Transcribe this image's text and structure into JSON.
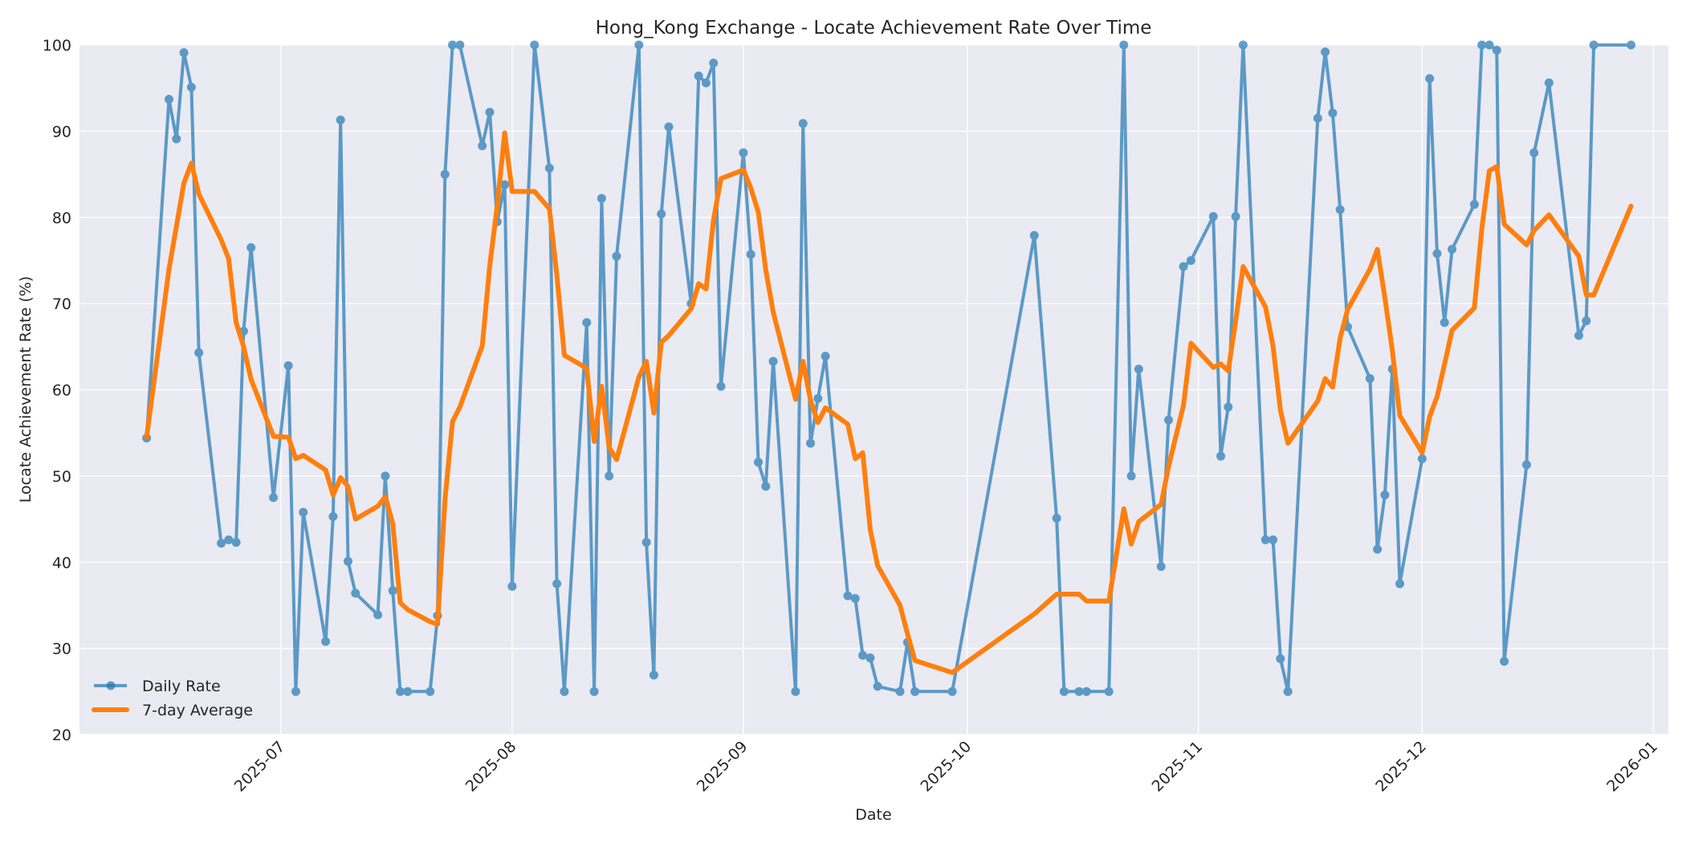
{
  "chart_data": {
    "type": "line",
    "title": "Hong_Kong Exchange - Locate Achievement Rate Over Time",
    "xlabel": "Date",
    "ylabel": "Locate Achievement Rate (%)",
    "ylim": [
      20,
      100
    ],
    "xlim": [
      "2025-06-04",
      "2026-01-03"
    ],
    "yticks": [
      20,
      30,
      40,
      50,
      60,
      70,
      80,
      90,
      100
    ],
    "xticks": [
      "2025-07",
      "2025-08",
      "2025-09",
      "2025-10",
      "2025-11",
      "2025-12",
      "2026-01"
    ],
    "grid": true,
    "legend_position": "lower left",
    "colors": {
      "daily": "#1f77b4",
      "average": "#ff7f0e",
      "plot_bg": "#eaeaf2",
      "grid": "#ffffff"
    },
    "x": [
      "2025-06-13",
      "2025-06-16",
      "2025-06-17",
      "2025-06-18",
      "2025-06-19",
      "2025-06-20",
      "2025-06-23",
      "2025-06-24",
      "2025-06-25",
      "2025-06-26",
      "2025-06-27",
      "2025-06-30",
      "2025-07-02",
      "2025-07-03",
      "2025-07-04",
      "2025-07-07",
      "2025-07-08",
      "2025-07-09",
      "2025-07-10",
      "2025-07-11",
      "2025-07-14",
      "2025-07-15",
      "2025-07-16",
      "2025-07-17",
      "2025-07-18",
      "2025-07-21",
      "2025-07-22",
      "2025-07-23",
      "2025-07-24",
      "2025-07-25",
      "2025-07-28",
      "2025-07-29",
      "2025-07-30",
      "2025-07-31",
      "2025-08-01",
      "2025-08-04",
      "2025-08-06",
      "2025-08-07",
      "2025-08-08",
      "2025-08-11",
      "2025-08-12",
      "2025-08-13",
      "2025-08-14",
      "2025-08-15",
      "2025-08-18",
      "2025-08-19",
      "2025-08-20",
      "2025-08-21",
      "2025-08-22",
      "2025-08-25",
      "2025-08-26",
      "2025-08-27",
      "2025-08-28",
      "2025-08-29",
      "2025-09-01",
      "2025-09-02",
      "2025-09-03",
      "2025-09-04",
      "2025-09-05",
      "2025-09-08",
      "2025-09-09",
      "2025-09-10",
      "2025-09-11",
      "2025-09-12",
      "2025-09-15",
      "2025-09-16",
      "2025-09-17",
      "2025-09-18",
      "2025-09-19",
      "2025-09-22",
      "2025-09-23",
      "2025-09-24",
      "2025-09-29",
      "2025-10-10",
      "2025-10-13",
      "2025-10-14",
      "2025-10-16",
      "2025-10-17",
      "2025-10-20",
      "2025-10-22",
      "2025-10-23",
      "2025-10-24",
      "2025-10-27",
      "2025-10-28",
      "2025-10-30",
      "2025-10-31",
      "2025-11-03",
      "2025-11-04",
      "2025-11-05",
      "2025-11-06",
      "2025-11-07",
      "2025-11-10",
      "2025-11-11",
      "2025-11-12",
      "2025-11-13",
      "2025-11-17",
      "2025-11-18",
      "2025-11-19",
      "2025-11-20",
      "2025-11-21",
      "2025-11-24",
      "2025-11-25",
      "2025-11-26",
      "2025-11-27",
      "2025-11-28",
      "2025-12-01",
      "2025-12-02",
      "2025-12-03",
      "2025-12-04",
      "2025-12-05",
      "2025-12-08",
      "2025-12-09",
      "2025-12-10",
      "2025-12-11",
      "2025-12-12",
      "2025-12-15",
      "2025-12-16",
      "2025-12-18",
      "2025-12-22",
      "2025-12-23",
      "2025-12-24",
      "2025-12-29"
    ],
    "series": [
      {
        "name": "Daily Rate",
        "style": "line-marker",
        "values": [
          54.4,
          93.7,
          89.1,
          99.1,
          95.1,
          64.3,
          42.2,
          42.6,
          42.3,
          66.8,
          76.5,
          47.5,
          62.8,
          25.0,
          45.8,
          30.8,
          45.3,
          91.3,
          40.1,
          36.4,
          33.9,
          50.0,
          36.7,
          25.0,
          25.0,
          25.0,
          33.8,
          85.0,
          100,
          100,
          88.3,
          92.2,
          79.5,
          83.8,
          37.2,
          100,
          85.7,
          37.5,
          25.0,
          67.8,
          25.0,
          82.2,
          50.0,
          75.5,
          100,
          42.3,
          26.9,
          80.4,
          90.5,
          70.0,
          96.4,
          95.6,
          97.9,
          60.4,
          87.5,
          75.7,
          51.6,
          48.8,
          63.3,
          25.0,
          90.9,
          53.8,
          59.0,
          63.9,
          36.1,
          35.8,
          29.2,
          28.9,
          25.6,
          25.0,
          30.7,
          25.0,
          25.0,
          77.9,
          45.1,
          25.0,
          25.0,
          25.0,
          25.0,
          100,
          50.0,
          62.4,
          39.5,
          56.5,
          74.3,
          75.0,
          80.1,
          52.3,
          58.0,
          80.1,
          100,
          42.6,
          42.6,
          28.8,
          25.0,
          91.5,
          99.2,
          92.1,
          80.9,
          67.3,
          61.3,
          41.5,
          47.8,
          62.4,
          37.5,
          52.0,
          96.1,
          75.8,
          67.8,
          76.3,
          81.5,
          100,
          100,
          99.4,
          28.5,
          51.3,
          87.5,
          95.6,
          66.3,
          68.0,
          100,
          100
        ]
      },
      {
        "name": "7-day Average",
        "style": "line",
        "values": [
          54.5,
          74.0,
          79.0,
          84.0,
          86.3,
          82.7,
          77.4,
          75.2,
          67.8,
          65.0,
          61.2,
          54.6,
          54.5,
          52.0,
          52.4,
          50.7,
          47.8,
          49.8,
          48.8,
          45.0,
          46.5,
          47.6,
          44.5,
          35.3,
          34.5,
          33.1,
          32.8,
          47.3,
          56.3,
          58.0,
          65.1,
          74.4,
          81.3,
          89.8,
          83.0,
          83.0,
          81.0,
          73.3,
          64.0,
          62.5,
          54.0,
          60.4,
          53.3,
          51.9,
          61.5,
          63.3,
          57.3,
          65.5,
          66.3,
          69.4,
          72.3,
          71.7,
          79.7,
          84.5,
          85.5,
          83.4,
          80.6,
          73.9,
          69.0,
          58.9,
          63.3,
          58.8,
          56.2,
          57.9,
          56.0,
          52.0,
          52.7,
          43.8,
          39.6,
          35.0,
          31.7,
          28.6,
          27.2,
          34.0,
          36.3,
          36.3,
          36.3,
          35.5,
          35.5,
          46.2,
          42.1,
          44.7,
          46.7,
          51.1,
          58.2,
          65.4,
          62.6,
          63.0,
          62.2,
          68.0,
          74.3,
          69.6,
          65.1,
          57.6,
          53.8,
          58.7,
          61.3,
          60.3,
          66.0,
          69.3,
          74.0,
          76.3,
          70.7,
          64.6,
          57.0,
          52.7,
          56.9,
          59.2,
          63.0,
          66.9,
          69.5,
          78.7,
          85.4,
          85.9,
          79.2,
          76.8,
          78.5,
          80.3,
          75.5,
          71.0,
          71.0,
          81.3
        ]
      }
    ]
  },
  "legend": {
    "items": [
      {
        "label": "Daily Rate"
      },
      {
        "label": "7-day Average"
      }
    ]
  }
}
